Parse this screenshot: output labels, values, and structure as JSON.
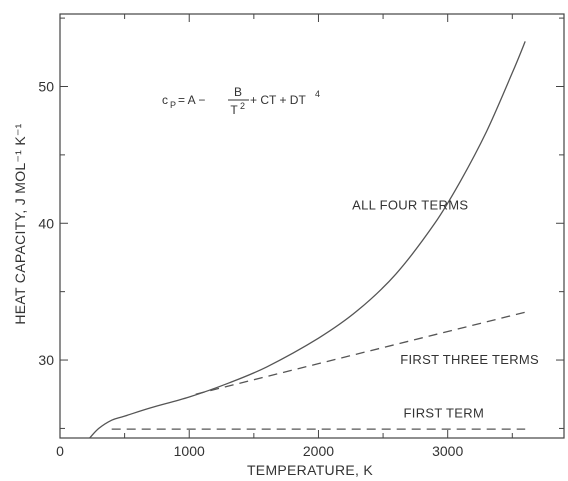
{
  "chart_data": {
    "type": "line",
    "xlabel": "TEMPERATURE, K",
    "ylabel": "HEAT CAPACITY, J MOL⁻¹ K⁻¹",
    "xlim": [
      0,
      3900
    ],
    "ylim": [
      24.3,
      55.3
    ],
    "x_ticks": [
      0,
      1000,
      2000,
      3000
    ],
    "x_tick_labels": [
      "0",
      "1000",
      "2000",
      "3000"
    ],
    "x_minor_ticks": [
      500,
      1500,
      2500,
      3500
    ],
    "y_ticks": [
      30,
      40,
      50
    ],
    "y_tick_labels": [
      "30",
      "40",
      "50"
    ],
    "y_minor_ticks": [
      25,
      35,
      45,
      55
    ],
    "grid": false,
    "legend": "none",
    "formula": {
      "lhs": "c",
      "lhs_sub": "P",
      "eq": " = A − ",
      "frac_num": "B",
      "frac_den": "T",
      "frac_den_sup": "2",
      "rest": " + CT + DT",
      "rest_sup": "4"
    },
    "series": [
      {
        "label": "ALL FOUR TERMS",
        "style": "solid",
        "x": [
          230,
          300,
          400,
          500,
          700,
          1000,
          1300,
          1600,
          2000,
          2300,
          2600,
          2900,
          3100,
          3300,
          3500,
          3600
        ],
        "y": [
          24.3,
          25.0,
          25.6,
          25.9,
          26.5,
          27.3,
          28.3,
          29.5,
          31.6,
          33.6,
          36.3,
          40.0,
          43.1,
          46.7,
          51.0,
          53.3
        ]
      },
      {
        "label": "FIRST THREE TERMS",
        "style": "dashed",
        "x": [
          1050,
          3600
        ],
        "y": [
          27.5,
          33.5
        ]
      },
      {
        "label": "FIRST TERM",
        "style": "dashed",
        "x": [
          400,
          3600
        ],
        "y": [
          24.95,
          24.95
        ]
      }
    ],
    "annotations": [
      {
        "text": "ALL FOUR TERMS",
        "x": 2710,
        "y": 41.0
      },
      {
        "text": "FIRST THREE TERMS",
        "x": 3170,
        "y": 29.7
      },
      {
        "text": "FIRST TERM",
        "x": 2970,
        "y": 25.8
      }
    ]
  }
}
